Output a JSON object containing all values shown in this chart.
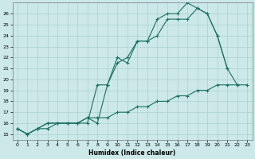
{
  "xlabel": "Humidex (Indice chaleur)",
  "bg_color": "#cce8e8",
  "grid_color": "#aad0d0",
  "line_color": "#1a7060",
  "xlim": [
    -0.5,
    23.5
  ],
  "ylim": [
    14.5,
    27.0
  ],
  "yticks": [
    15,
    16,
    17,
    18,
    19,
    20,
    21,
    22,
    23,
    24,
    25,
    26
  ],
  "xticks": [
    0,
    1,
    2,
    3,
    4,
    5,
    6,
    7,
    8,
    9,
    10,
    11,
    12,
    13,
    14,
    15,
    16,
    17,
    18,
    19,
    20,
    21,
    22,
    23
  ],
  "line1_x": [
    0,
    1,
    2,
    3,
    4,
    5,
    6,
    7,
    8,
    9,
    10,
    11,
    12,
    13,
    14,
    15,
    16,
    17,
    18,
    19,
    20,
    21,
    22,
    23
  ],
  "line1_y": [
    15.5,
    15.0,
    15.5,
    16.0,
    16.0,
    16.0,
    16.0,
    16.0,
    19.5,
    19.5,
    21.5,
    22.0,
    23.5,
    23.5,
    24.0,
    25.5,
    25.5,
    25.5,
    26.5,
    26.0,
    24.0,
    21.0,
    null,
    null
  ],
  "line2_x": [
    0,
    1,
    2,
    3,
    4,
    5,
    6,
    7,
    8,
    9,
    10,
    11,
    12,
    13,
    14,
    15,
    16,
    17,
    18,
    19,
    20,
    21,
    22,
    23
  ],
  "line2_y": [
    15.5,
    15.0,
    15.5,
    16.0,
    16.0,
    16.0,
    16.0,
    16.5,
    16.0,
    19.5,
    22.0,
    21.5,
    23.5,
    23.5,
    25.5,
    26.0,
    26.0,
    27.0,
    26.5,
    26.0,
    24.0,
    21.0,
    19.5,
    null
  ],
  "line3_x": [
    0,
    1,
    2,
    3,
    4,
    5,
    6,
    7,
    8,
    9,
    10,
    11,
    12,
    13,
    14,
    15,
    16,
    17,
    18,
    19,
    20,
    21,
    22,
    23
  ],
  "line3_y": [
    15.5,
    15.0,
    15.5,
    15.5,
    16.0,
    16.0,
    16.0,
    16.5,
    16.5,
    16.5,
    17.0,
    17.0,
    17.5,
    17.5,
    18.0,
    18.0,
    18.5,
    18.5,
    19.0,
    19.0,
    19.5,
    19.5,
    19.5,
    19.5
  ]
}
